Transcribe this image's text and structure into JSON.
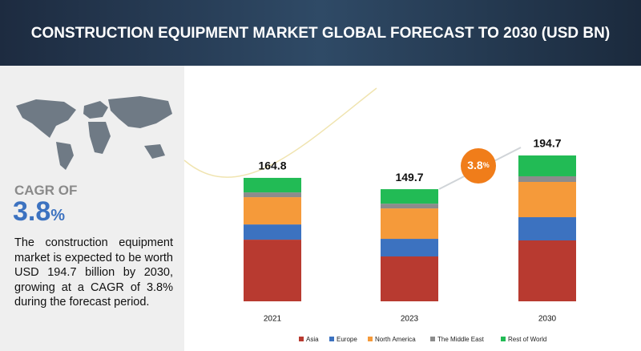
{
  "chart_data": {
    "type": "stacked_bar",
    "title": "CONSTRUCTION EQUIPMENT MARKET GLOBAL FORECAST TO 2030 (USD BN)",
    "categories": [
      "2021",
      "2023",
      "2030"
    ],
    "totals": [
      164.8,
      149.7,
      194.7
    ],
    "series": [
      {
        "name": "Asia",
        "color": "#b83a30",
        "values": [
          82.3,
          59.9,
          81.3
        ]
      },
      {
        "name": "Europe",
        "color": "#3c72c0",
        "values": [
          20.3,
          23.5,
          31.0
        ]
      },
      {
        "name": "North America",
        "color": "#f59a3a",
        "values": [
          36.4,
          40.6,
          47.1
        ]
      },
      {
        "name": "The Middle East",
        "color": "#8c8c8c",
        "values": [
          6.4,
          6.4,
          7.5
        ]
      },
      {
        "name": "Rest of World",
        "color": "#22bb55",
        "values": [
          19.4,
          19.3,
          27.8
        ]
      }
    ],
    "cagr": {
      "label": "CAGR OF",
      "number": "3.8",
      "unit": "%"
    },
    "description": "The construction equipment market is expected to be worth USD 194.7 billion by 2030, growing at a CAGR of 3.8% during the forecast period."
  }
}
